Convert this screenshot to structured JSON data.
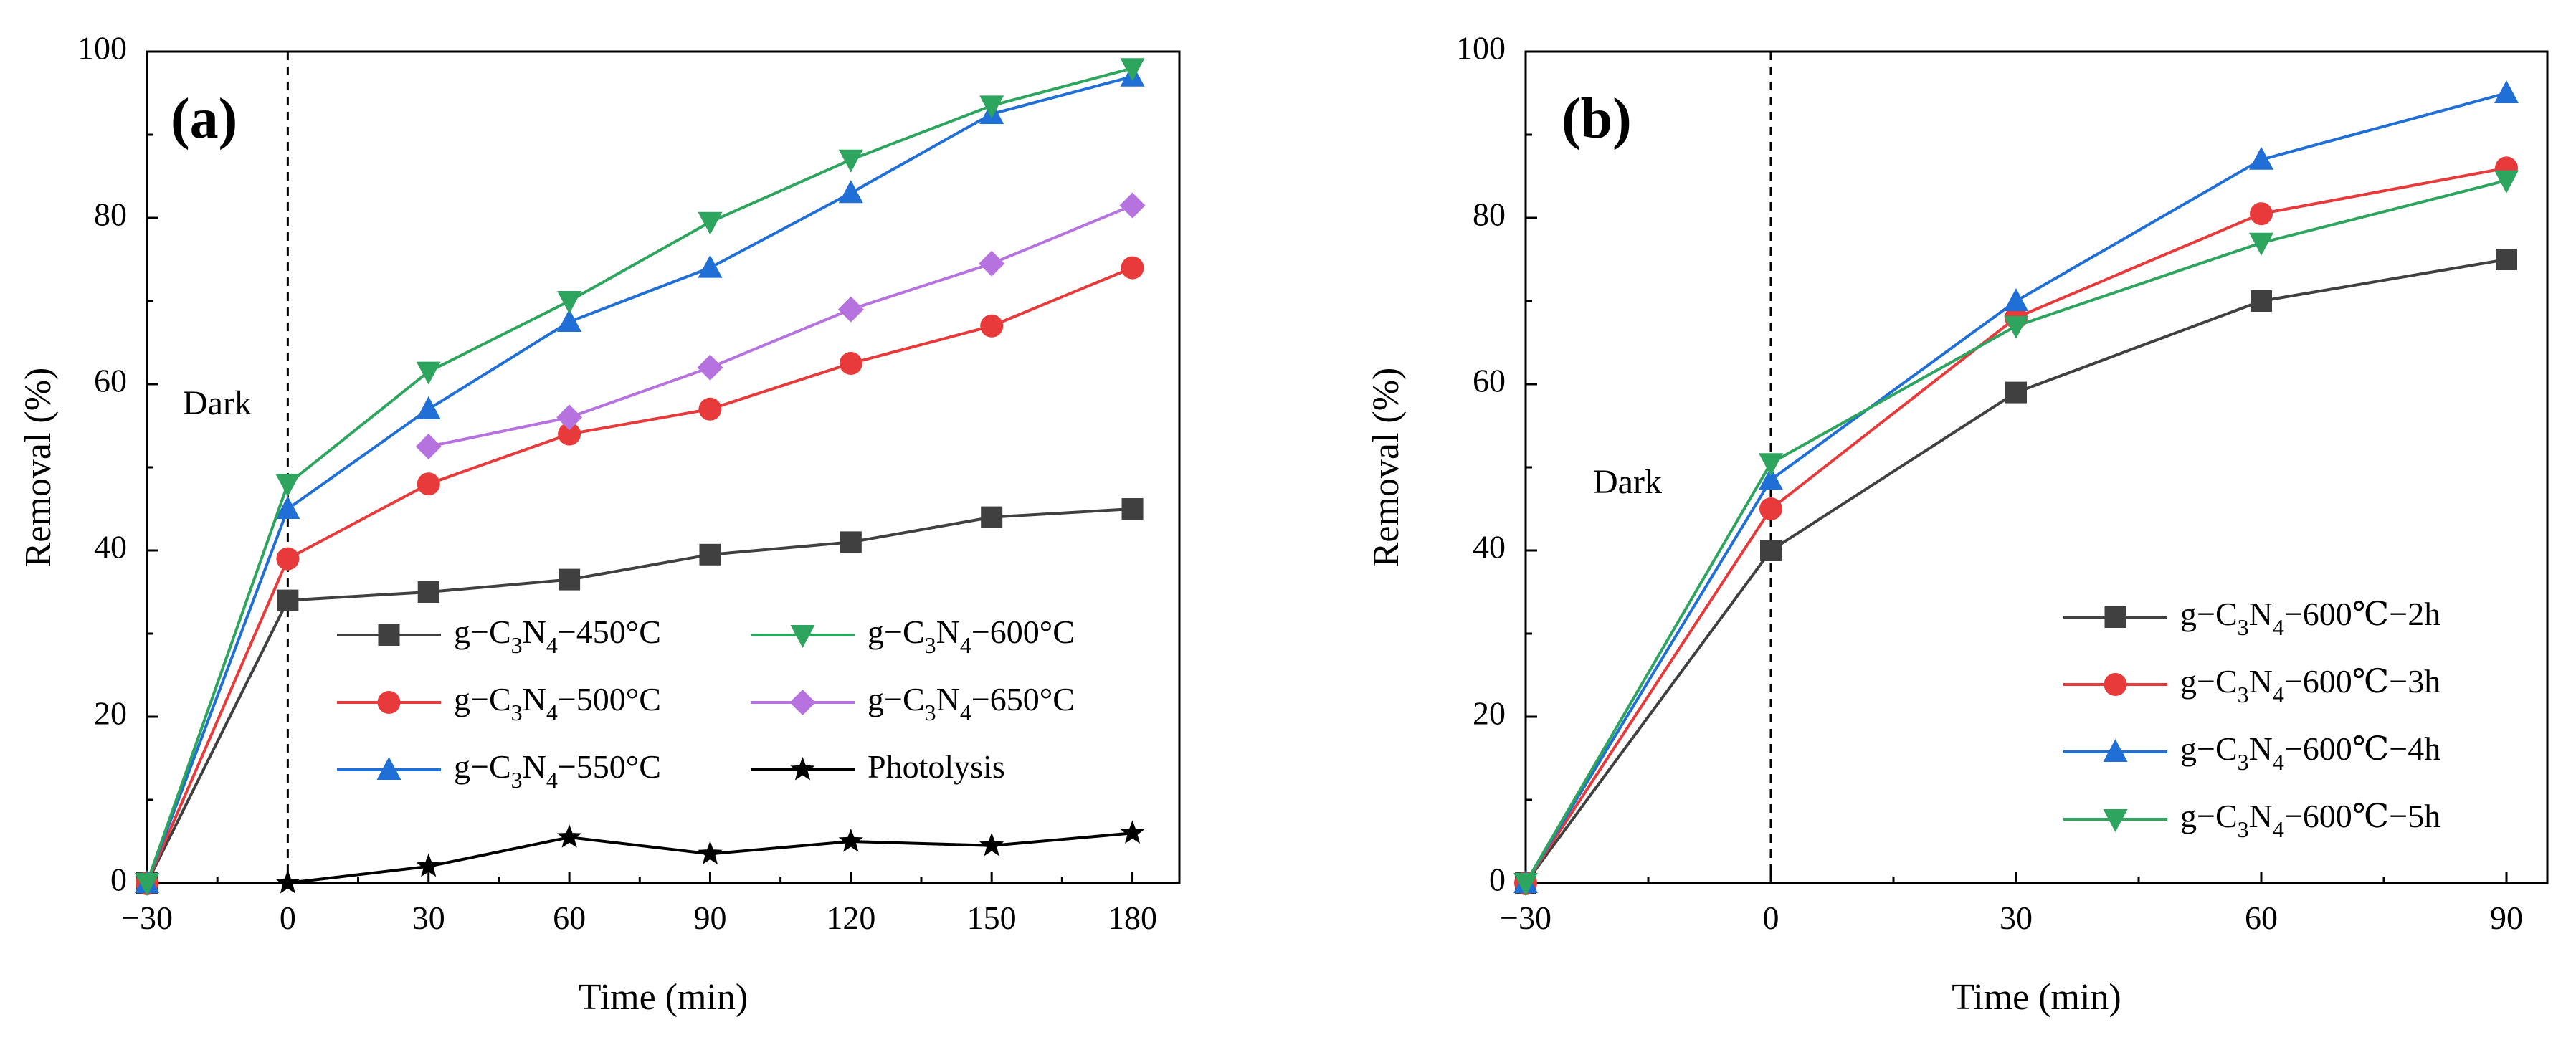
{
  "chart_data": [
    {
      "type": "line",
      "panel_label": "(a)",
      "xlabel": "Time (min)",
      "ylabel": "Removal (%)",
      "xlim": [
        -30,
        190
      ],
      "ylim": [
        0,
        100
      ],
      "xticks": [
        -30,
        0,
        30,
        60,
        90,
        120,
        150,
        180
      ],
      "xtick_labels": [
        "−30",
        "0",
        "30",
        "60",
        "90",
        "120",
        "150",
        "180"
      ],
      "yticks": [
        0,
        20,
        40,
        60,
        80,
        100
      ],
      "ytick_labels": [
        "0",
        "20",
        "40",
        "60",
        "80",
        "100"
      ],
      "annotation": "Dark",
      "dark_line_x": 0,
      "legend_position": "bottom-center",
      "series": [
        {
          "name": "g−C3N4−450°C",
          "label_parts": [
            "g−C",
            "3",
            "N",
            "4",
            "−450°C"
          ],
          "color": "#404040",
          "marker": "square",
          "x": [
            -30,
            0,
            30,
            60,
            90,
            120,
            150,
            180
          ],
          "y": [
            0,
            34,
            35,
            36.5,
            39.5,
            41,
            44,
            45
          ]
        },
        {
          "name": "g−C3N4−500°C",
          "label_parts": [
            "g−C",
            "3",
            "N",
            "4",
            "−500°C"
          ],
          "color": "#e83a3a",
          "marker": "circle",
          "x": [
            -30,
            0,
            30,
            60,
            90,
            120,
            150,
            180
          ],
          "y": [
            0,
            39,
            48,
            54,
            57,
            62.5,
            67,
            74
          ]
        },
        {
          "name": "g−C3N4−550°C",
          "label_parts": [
            "g−C",
            "3",
            "N",
            "4",
            "−550°C"
          ],
          "color": "#1f6fd6",
          "marker": "triangle-up",
          "x": [
            -30,
            0,
            30,
            60,
            90,
            120,
            150,
            180
          ],
          "y": [
            0,
            45,
            57,
            67.5,
            74,
            83,
            92.5,
            97
          ]
        },
        {
          "name": "g−C3N4−600°C",
          "label_parts": [
            "g−C",
            "3",
            "N",
            "4",
            "−600°C"
          ],
          "color": "#2ea55f",
          "marker": "triangle-down",
          "x": [
            -30,
            0,
            30,
            60,
            90,
            120,
            150,
            180
          ],
          "y": [
            0,
            48,
            61.5,
            70,
            79.5,
            87,
            93.5,
            98
          ]
        },
        {
          "name": "g−C3N4−650°C",
          "label_parts": [
            "g−C",
            "3",
            "N",
            "4",
            "−650°C"
          ],
          "color": "#b673e0",
          "marker": "diamond",
          "x": [
            30,
            60,
            90,
            120,
            150,
            180
          ],
          "y": [
            52.5,
            56,
            62,
            69,
            74.5,
            81.5
          ]
        },
        {
          "name": "Photolysis",
          "label_parts": [
            "Photolysis"
          ],
          "color": "#000000",
          "marker": "star",
          "x": [
            0,
            30,
            60,
            90,
            120,
            150,
            180
          ],
          "y": [
            0,
            2,
            5.5,
            3.5,
            5,
            4.5,
            6
          ]
        }
      ]
    },
    {
      "type": "line",
      "panel_label": "(b)",
      "xlabel": "Time (min)",
      "ylabel": "Removal (%)",
      "xlim": [
        -30,
        95
      ],
      "ylim": [
        0,
        100
      ],
      "xticks": [
        -30,
        0,
        30,
        60,
        90
      ],
      "xtick_labels": [
        "−30",
        "0",
        "30",
        "60",
        "90"
      ],
      "yticks": [
        0,
        20,
        40,
        60,
        80,
        100
      ],
      "ytick_labels": [
        "0",
        "20",
        "40",
        "60",
        "80",
        "100"
      ],
      "annotation": "Dark",
      "dark_line_x": 0,
      "legend_position": "bottom-right",
      "series": [
        {
          "name": "g−C3N4−600℃−2h",
          "label_parts": [
            "g−C",
            "3",
            "N",
            "4",
            "−600℃−2h"
          ],
          "color": "#404040",
          "marker": "square",
          "x": [
            -30,
            0,
            30,
            60,
            90
          ],
          "y": [
            0,
            40,
            59,
            70,
            75
          ]
        },
        {
          "name": "g−C3N4−600℃−3h",
          "label_parts": [
            "g−C",
            "3",
            "N",
            "4",
            "−600℃−3h"
          ],
          "color": "#e83a3a",
          "marker": "circle",
          "x": [
            -30,
            0,
            30,
            60,
            90
          ],
          "y": [
            0,
            45,
            68,
            80.5,
            86
          ]
        },
        {
          "name": "g−C3N4−600℃−4h",
          "label_parts": [
            "g−C",
            "3",
            "N",
            "4",
            "−600℃−4h"
          ],
          "color": "#1f6fd6",
          "marker": "triangle-up",
          "x": [
            -30,
            0,
            30,
            60,
            90
          ],
          "y": [
            0,
            48.5,
            70,
            87,
            95
          ]
        },
        {
          "name": "g−C3N4−600℃−5h",
          "label_parts": [
            "g−C",
            "3",
            "N",
            "4",
            "−600℃−5h"
          ],
          "color": "#2ea55f",
          "marker": "triangle-down",
          "x": [
            -30,
            0,
            30,
            60,
            90
          ],
          "y": [
            0,
            50.5,
            67,
            77,
            84.5
          ]
        }
      ]
    }
  ]
}
